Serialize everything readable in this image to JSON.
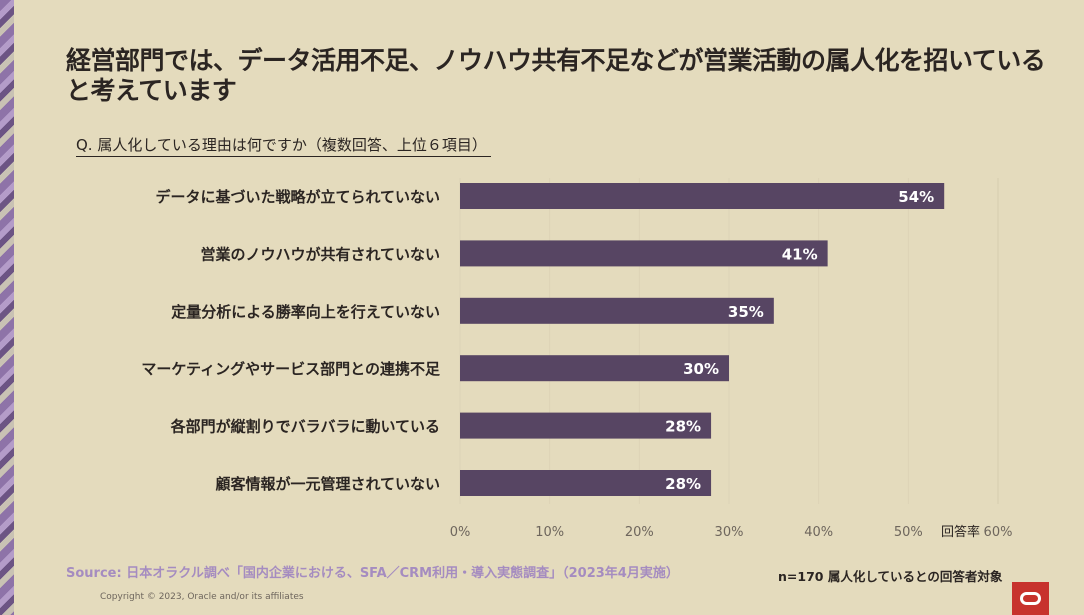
{
  "title": "経営部門では、データ活用不足、ノウハウ共有不足などが営業活動の属人化を招いていると考えています",
  "question": "Q.  属人化している理由は何ですか（複数回答、上位６項目）",
  "source": "Source: 日本オラクル調べ「国内企業における、SFA／CRM利用・導入実態調査」（2023年4月実施）",
  "copyright": "Copyright © 2023, Oracle and/or its affiliates",
  "note": "n=170 属人化しているとの回答者対象",
  "colors": {
    "bar": "#574563",
    "background": "#e4dbbd",
    "logo": "#c7322d"
  },
  "chart_data": {
    "type": "bar",
    "orientation": "horizontal",
    "categories": [
      "データに基づいた戦略が立てられていない",
      "営業のノウハウが共有されていない",
      "定量分析による勝率向上を行えていない",
      "マーケティングやサービス部門との連携不足",
      "各部門が縦割りでバラバラに動いている",
      "顧客情報が一元管理されていない"
    ],
    "values": [
      54,
      41,
      35,
      30,
      28,
      28
    ],
    "data_labels": [
      "54%",
      "41%",
      "35%",
      "30%",
      "28%",
      "28%"
    ],
    "xlabel": "回答率",
    "xlim": [
      0,
      60
    ],
    "ticks": [
      "0%",
      "10%",
      "20%",
      "30%",
      "40%",
      "50%",
      "60%"
    ],
    "grid": true
  }
}
